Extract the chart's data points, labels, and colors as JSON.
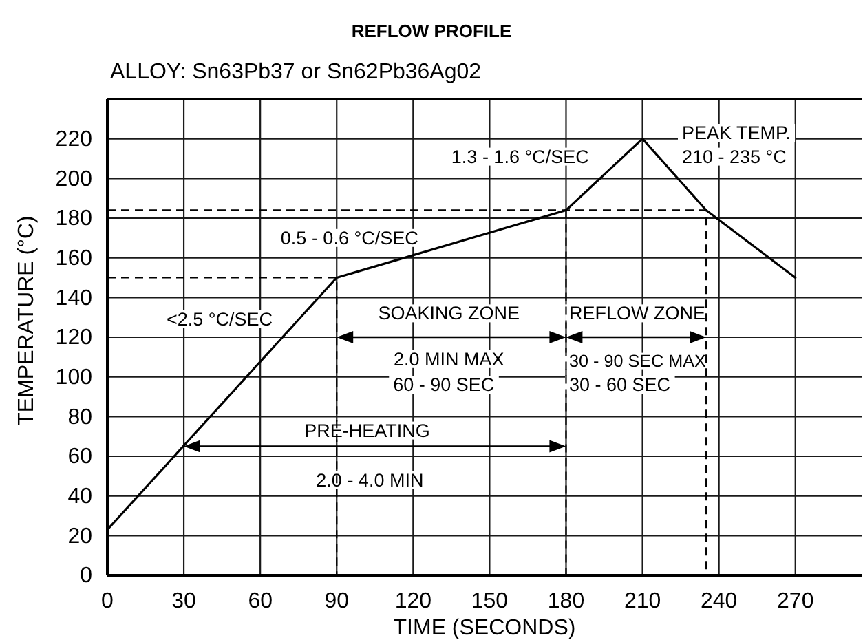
{
  "chart_data": {
    "type": "line",
    "title": "REFLOW PROFILE",
    "subtitle": "ALLOY: Sn63Pb37 or Sn62Pb36Ag02",
    "xlabel": "TIME (SECONDS)",
    "ylabel": "TEMPERATURE (°C)",
    "xlim": [
      0,
      296
    ],
    "ylim": [
      0,
      240
    ],
    "xticks": [
      0,
      30,
      60,
      90,
      120,
      150,
      180,
      210,
      240,
      270
    ],
    "yticks": [
      0,
      20,
      40,
      60,
      80,
      100,
      120,
      140,
      160,
      180,
      200,
      220
    ],
    "grid": true,
    "series": [
      {
        "x": [
          0,
          90,
          180,
          210,
          235,
          270
        ],
        "values": [
          23,
          150,
          184,
          220,
          184,
          150
        ],
        "color": "#000000"
      },
      {
        "x": [
          0,
          90,
          90
        ],
        "values": [
          150,
          150,
          0
        ],
        "color": "#000000",
        "line_style": "dashed"
      },
      {
        "x": [
          0,
          235,
          235
        ],
        "values": [
          184,
          184,
          0
        ],
        "color": "#000000",
        "line_style": "dashed"
      },
      {
        "x": [
          180,
          180
        ],
        "values": [
          184,
          0
        ],
        "color": "#000000",
        "line_style": "dashed"
      }
    ],
    "annotations": [
      "<2.5 °C/SEC",
      "0.5 - 0.6 °C/SEC",
      "1.3 - 1.6 °C/SEC",
      "PEAK TEMP.",
      "210 - 235 °C",
      "SOAKING ZONE",
      {
        "text": "REFLOW ZONE",
        "x": 180,
        "y": 120
      },
      "2.0 MIN MAX",
      "60 - 90 SEC",
      "30 - 90 SEC MAX",
      "30 - 60 SEC",
      "PRE-HEATING",
      "2.0 - 4.0 MIN"
    ]
  }
}
